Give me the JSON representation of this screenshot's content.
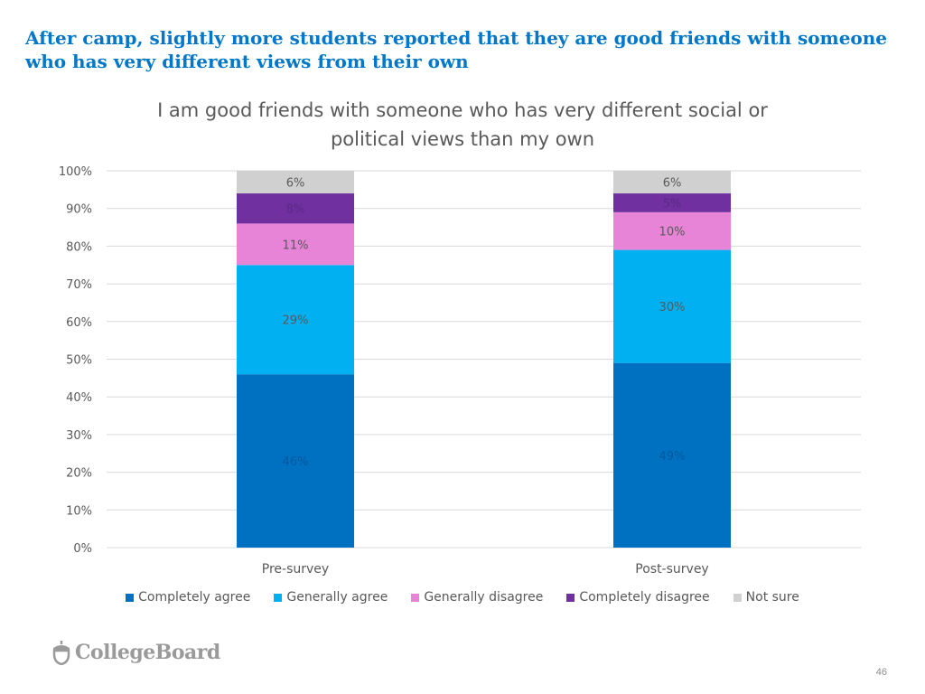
{
  "slide": {
    "headline": "After camp, slightly more students reported that they are good friends with someone who has very different views from their own",
    "logo_text": "CollegeBoard",
    "logo_icon": "acorn-icon",
    "page_number": "46"
  },
  "chart_data": {
    "type": "bar",
    "stacked": true,
    "title_lines": [
      "I am good friends with someone who has very different social or",
      "political views than my own"
    ],
    "categories": [
      "Pre-survey",
      "Post-survey"
    ],
    "ylim": [
      0,
      100
    ],
    "yticks": [
      0,
      10,
      20,
      30,
      40,
      50,
      60,
      70,
      80,
      90,
      100
    ],
    "ytick_labels": [
      "0%",
      "10%",
      "20%",
      "30%",
      "40%",
      "50%",
      "60%",
      "70%",
      "80%",
      "90%",
      "100%"
    ],
    "grid": true,
    "legend_position": "bottom",
    "series": [
      {
        "name": "Completely agree",
        "color": "#0070c0",
        "label_color": "#005aa0",
        "values": [
          46,
          49
        ],
        "labels": [
          "46%",
          "49%"
        ]
      },
      {
        "name": "Generally agree",
        "color": "#00b0f0",
        "label_color": "#595959",
        "values": [
          29,
          30
        ],
        "labels": [
          "29%",
          "30%"
        ]
      },
      {
        "name": "Generally disagree",
        "color": "#e884d8",
        "label_color": "#595959",
        "values": [
          11,
          10
        ],
        "labels": [
          "11%",
          "10%"
        ]
      },
      {
        "name": "Completely disagree",
        "color": "#7030a0",
        "label_color": "#5a2a85",
        "values": [
          8,
          5
        ],
        "labels": [
          "8%",
          "5%"
        ]
      },
      {
        "name": "Not sure",
        "color": "#d0d0d0",
        "label_color": "#595959",
        "values": [
          6,
          6
        ],
        "labels": [
          "6%",
          "6%"
        ]
      }
    ]
  }
}
